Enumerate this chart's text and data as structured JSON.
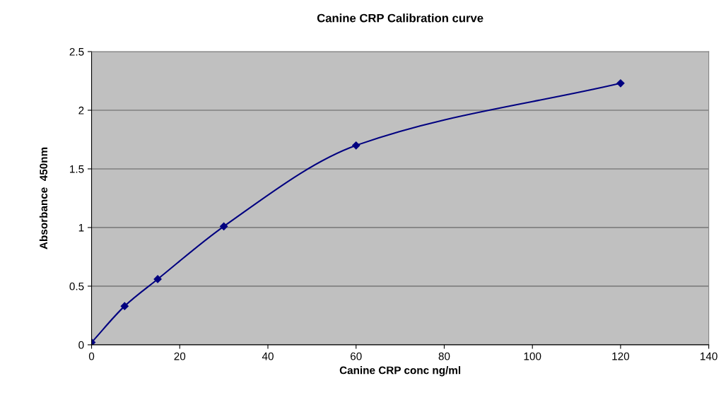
{
  "chart_data": {
    "type": "line",
    "title": "Canine CRP Calibration curve",
    "xlabel": "Canine CRP conc ng/ml",
    "ylabel": "Absorbance  450nm",
    "x": [
      0,
      7.5,
      15,
      30,
      60,
      120
    ],
    "series": [
      {
        "color": "#000080",
        "values": [
          0.02,
          0.33,
          0.56,
          1.01,
          1.7,
          2.23
        ]
      }
    ],
    "xlim": [
      0,
      140
    ],
    "xticks": [
      0,
      20,
      40,
      60,
      80,
      100,
      120,
      140
    ],
    "ylim": [
      0,
      2.5
    ],
    "yticks": [
      0,
      0.5,
      1,
      1.5,
      2,
      2.5
    ],
    "grid": "y",
    "marker": "diamond",
    "line_style": "solid",
    "legend": false
  }
}
